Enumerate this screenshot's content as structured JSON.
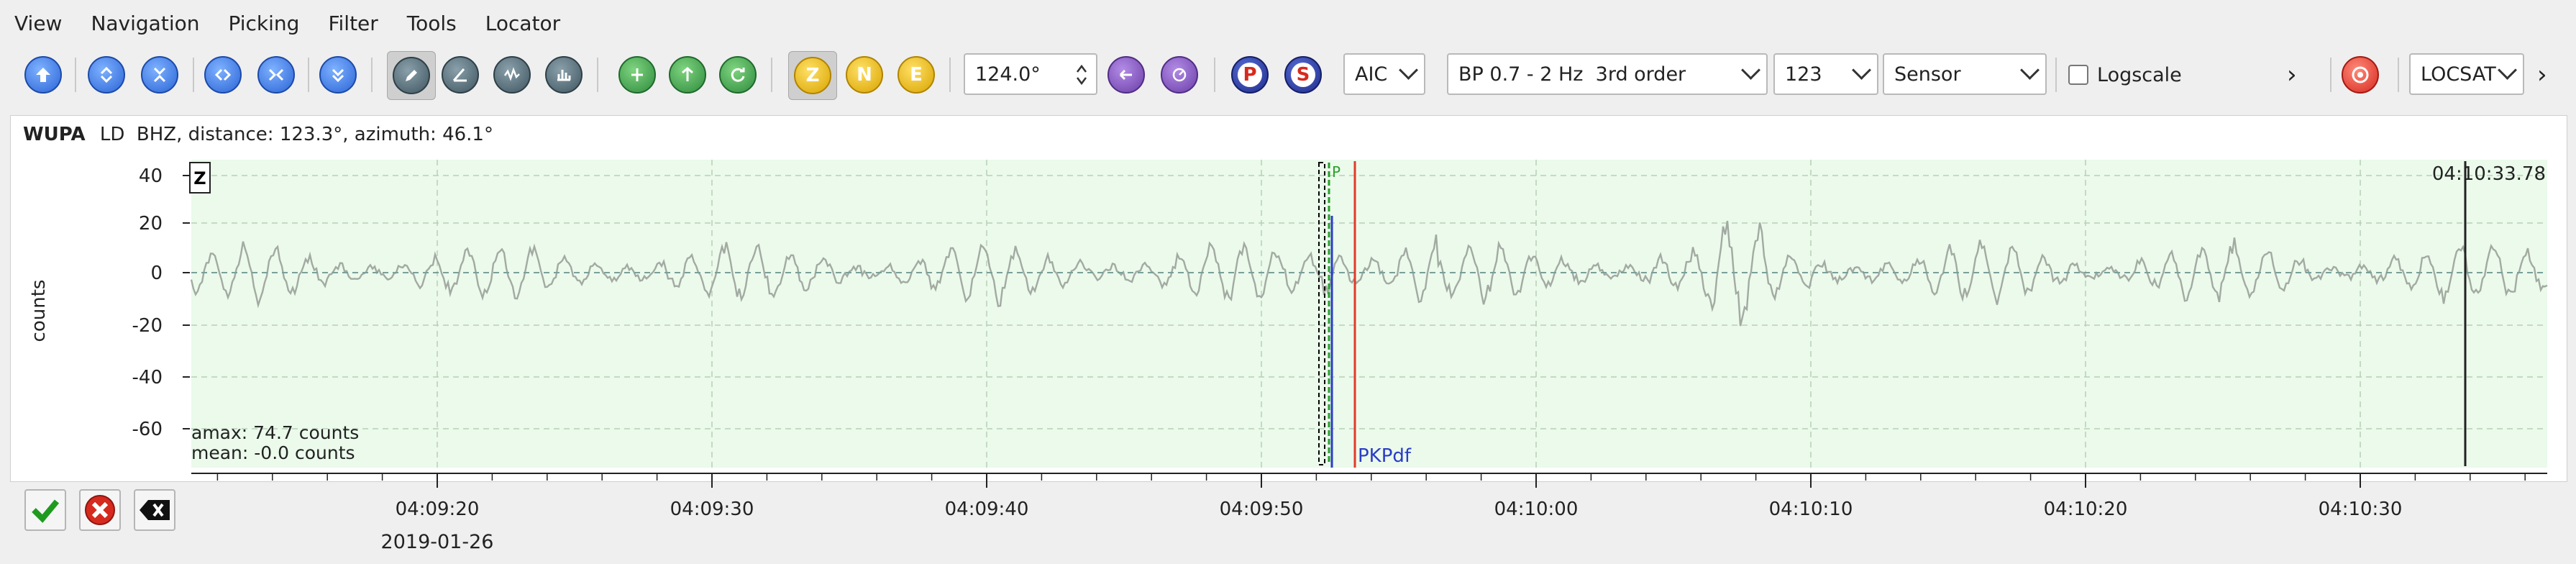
{
  "menu": [
    "View",
    "Navigation",
    "Picking",
    "Filter",
    "Tools",
    "Locator"
  ],
  "toolbar": {
    "component_buttons": [
      "Z",
      "N",
      "E"
    ],
    "slowness_value": "124.0°",
    "phase_buttons": [
      "P",
      "S"
    ],
    "picker_method": "AIC",
    "filter": "BP 0.7 - 2 Hz  3rd order",
    "channels": "123",
    "unit": "Sensor",
    "logscale_label": "Logscale",
    "logscale_checked": false,
    "more_symbol": "›",
    "locator": "LOCSAT",
    "more_symbol_2": "›"
  },
  "trace": {
    "station": "WUPA",
    "info": "LD  BHZ, distance: 123.3°, azimuth: 46.1°",
    "component_label": "Z",
    "ylabel": "counts",
    "yticks": [
      "40",
      "20",
      "0",
      "-20",
      "-40",
      "-60"
    ],
    "amax": "amax: 74.7 counts",
    "mean": "mean: -0.0 counts",
    "pick_marker": "P",
    "phase_label": "PKPdf",
    "cursor_time": "04:10:33.78"
  },
  "time_axis": {
    "ticks": [
      "04:09:20",
      "04:09:30",
      "04:09:40",
      "04:09:50",
      "04:10:00",
      "04:10:10",
      "04:10:20",
      "04:10:30"
    ],
    "date": "2019-01-26"
  },
  "colors": {
    "trace_bg": "#ebfaeb",
    "waveform": "#a2aaa2",
    "pick_green": "#2aa02a",
    "predicted_red": "#e23a2a",
    "phase_blue": "#2a3cc8"
  }
}
